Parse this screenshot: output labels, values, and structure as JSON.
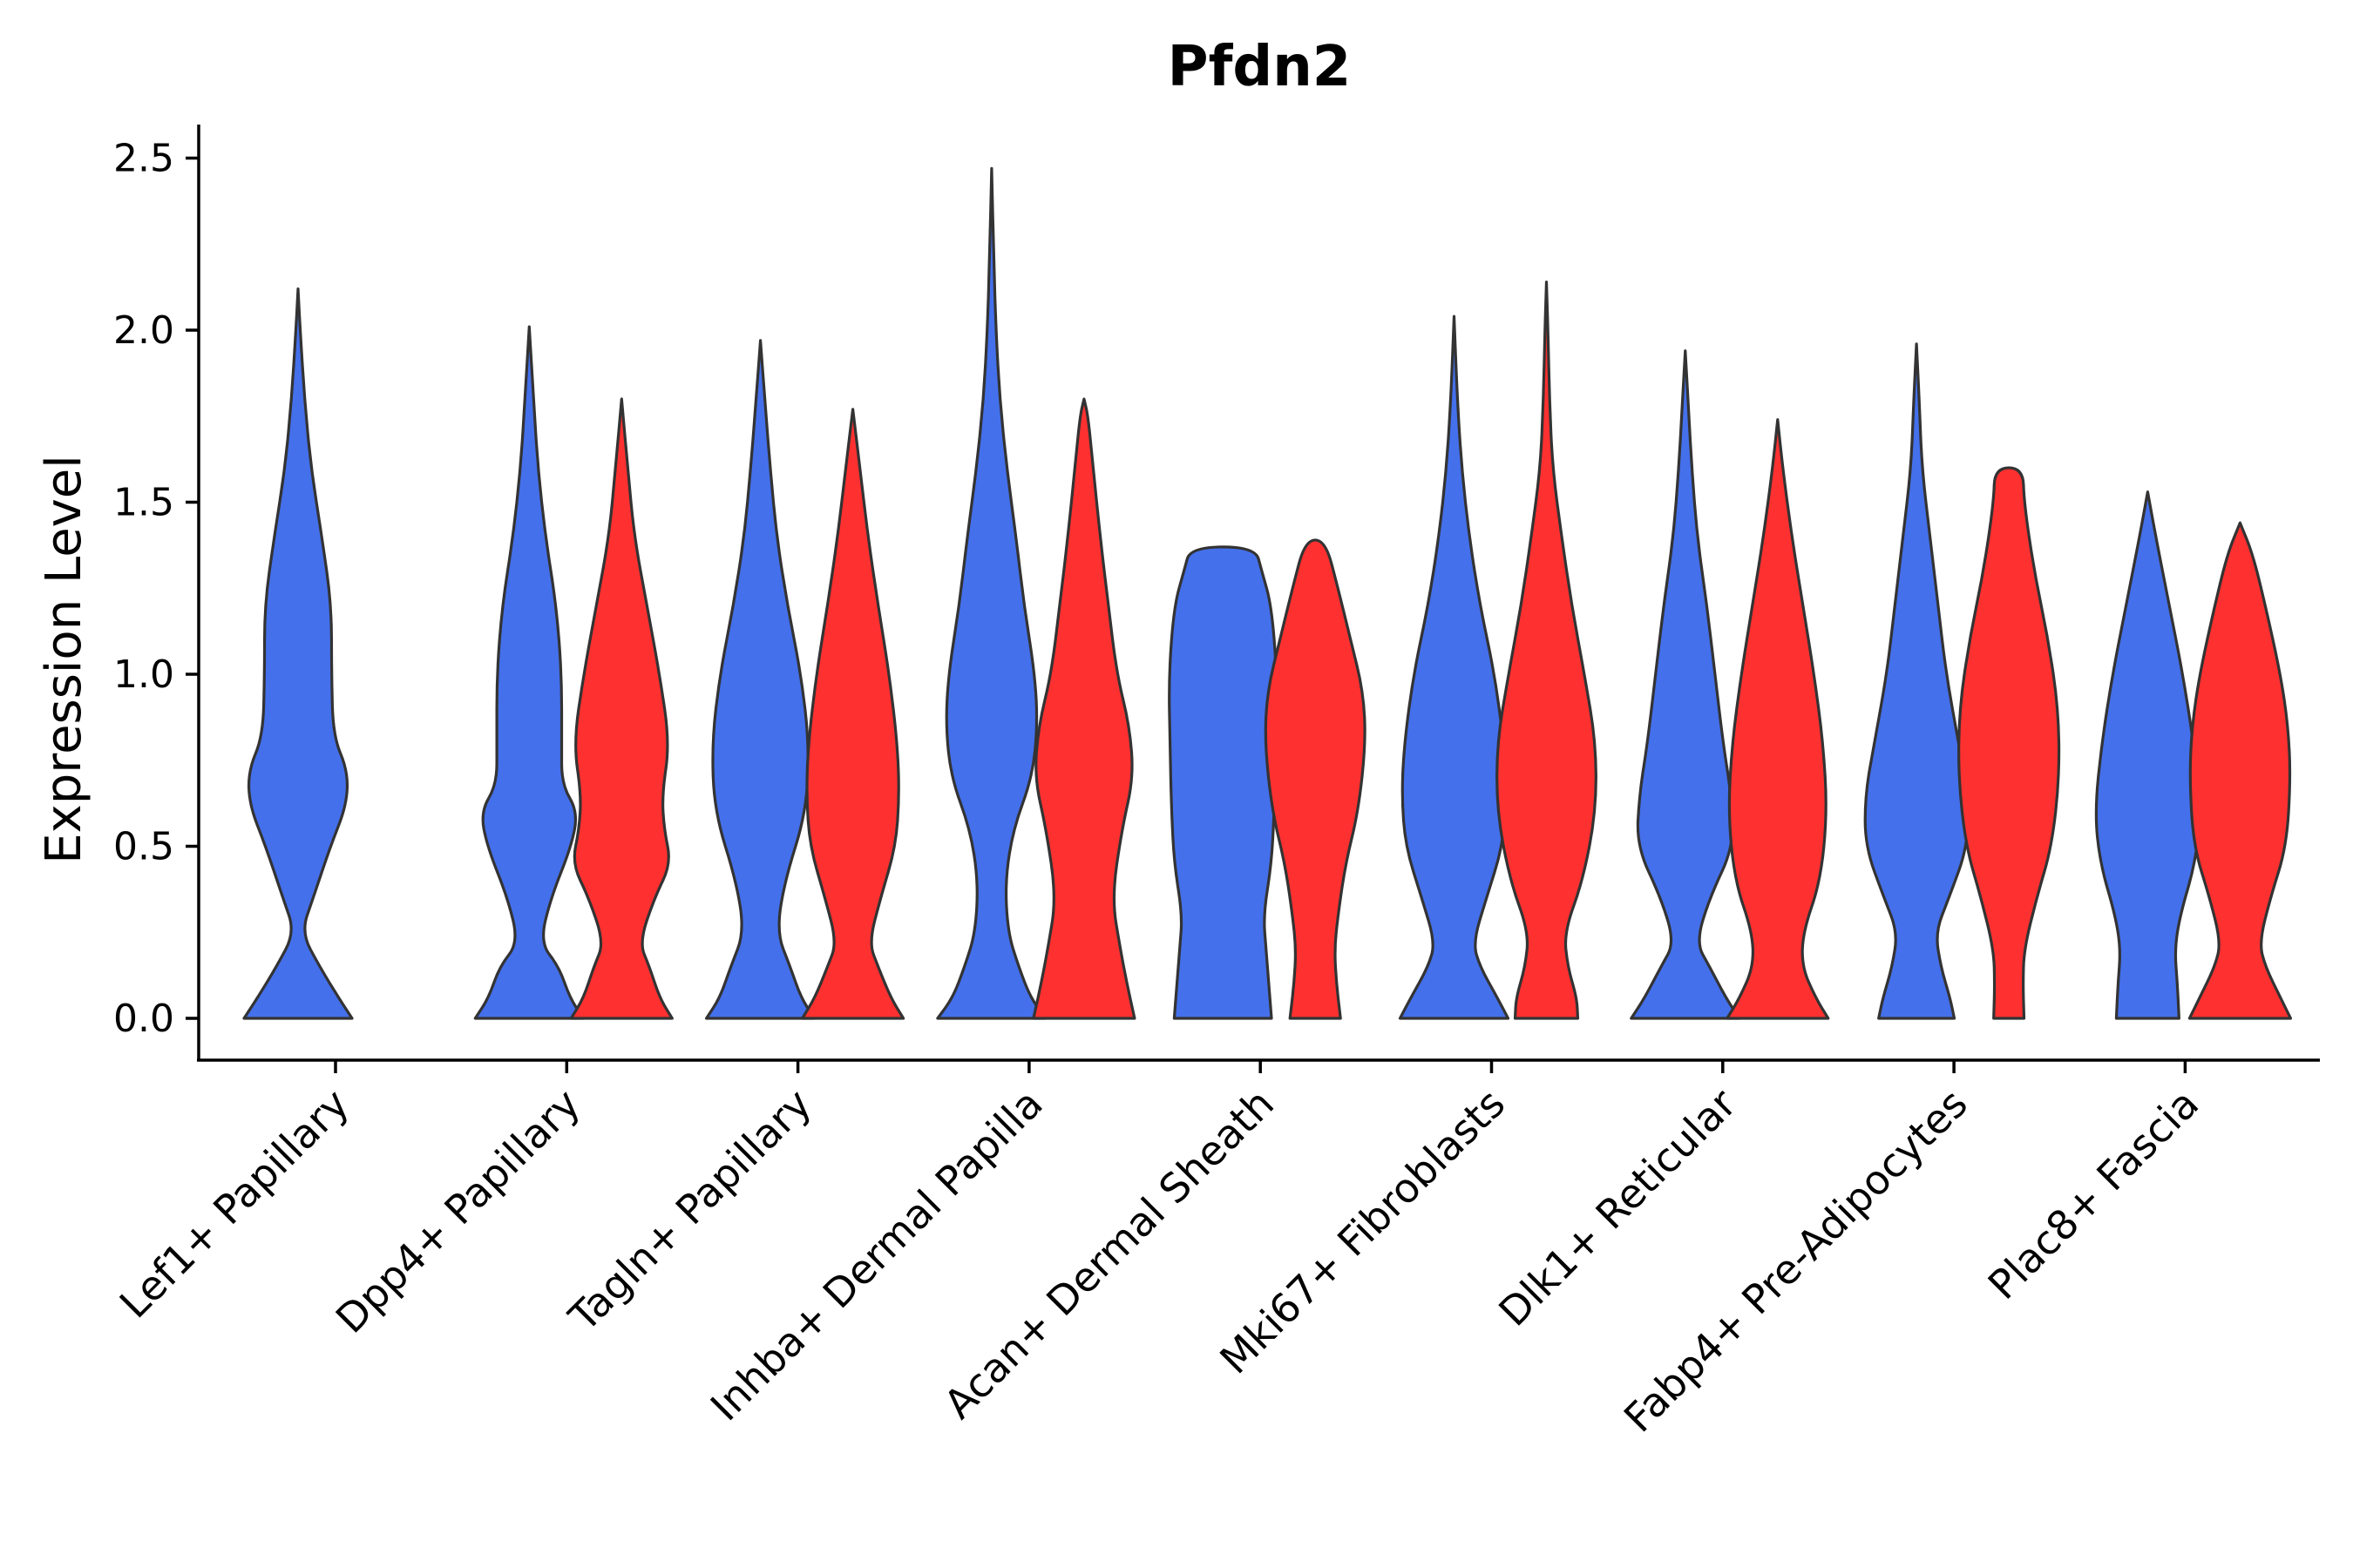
{
  "chart_data": {
    "type": "violin",
    "title": "Pfdn2",
    "xlabel": "",
    "ylabel": "Expression Level",
    "ylim": [
      -0.12,
      2.6
    ],
    "yticks": [
      0.0,
      0.5,
      1.0,
      1.5,
      2.0,
      2.5
    ],
    "ytick_labels": [
      "0.0",
      "0.5",
      "1.0",
      "1.5",
      "2.0",
      "2.5"
    ],
    "grid": false,
    "legend": "none",
    "colors": {
      "group_a": "#4470EB",
      "group_b": "#FF3030",
      "outline": "#333333"
    },
    "categories": [
      "Lef1+ Papillary",
      "Dpp4+ Papillary",
      "Tagln+ Papillary",
      "Inhba+ Dermal Papilla",
      "Acan+ Dermal Sheath",
      "Mki67+ Fibroblasts",
      "Dlk1+ Reticular",
      "Fabp4+ Pre-Adipocytes",
      "Plac8+ Fascia"
    ],
    "violins": [
      {
        "category": 0,
        "group": "a",
        "max": 2.12,
        "flat": false,
        "profile": [
          [
            0,
            1.0
          ],
          [
            0.06,
            0.75
          ],
          [
            0.15,
            0.4
          ],
          [
            0.25,
            0.06
          ],
          [
            0.35,
            0.28
          ],
          [
            0.5,
            0.6
          ],
          [
            0.62,
            0.9
          ],
          [
            0.72,
            0.92
          ],
          [
            0.82,
            0.65
          ],
          [
            1.0,
            0.62
          ],
          [
            1.2,
            0.62
          ],
          [
            1.4,
            0.44
          ],
          [
            1.6,
            0.24
          ],
          [
            1.8,
            0.12
          ],
          [
            2.0,
            0.04
          ],
          [
            2.12,
            0.0
          ]
        ]
      },
      {
        "category": 1,
        "group": "a",
        "max": 2.01,
        "flat": false,
        "profile": [
          [
            0,
            1.0
          ],
          [
            0.06,
            0.75
          ],
          [
            0.15,
            0.55
          ],
          [
            0.22,
            0.2
          ],
          [
            0.35,
            0.4
          ],
          [
            0.5,
            0.78
          ],
          [
            0.6,
            0.9
          ],
          [
            0.68,
            0.6
          ],
          [
            0.8,
            0.6
          ],
          [
            1.0,
            0.6
          ],
          [
            1.2,
            0.5
          ],
          [
            1.4,
            0.3
          ],
          [
            1.6,
            0.16
          ],
          [
            1.8,
            0.08
          ],
          [
            2.01,
            0.0
          ]
        ]
      },
      {
        "category": 1,
        "group": "b",
        "max": 1.8,
        "flat": false,
        "profile": [
          [
            0,
            1.0
          ],
          [
            0.06,
            0.75
          ],
          [
            0.15,
            0.55
          ],
          [
            0.22,
            0.35
          ],
          [
            0.35,
            0.65
          ],
          [
            0.45,
            0.98
          ],
          [
            0.55,
            0.84
          ],
          [
            0.65,
            0.8
          ],
          [
            0.8,
            0.95
          ],
          [
            1.0,
            0.75
          ],
          [
            1.2,
            0.5
          ],
          [
            1.4,
            0.25
          ],
          [
            1.6,
            0.12
          ],
          [
            1.8,
            0.0
          ]
        ]
      },
      {
        "category": 2,
        "group": "a",
        "max": 1.97,
        "flat": false,
        "profile": [
          [
            0,
            1.0
          ],
          [
            0.06,
            0.75
          ],
          [
            0.15,
            0.55
          ],
          [
            0.25,
            0.3
          ],
          [
            0.4,
            0.45
          ],
          [
            0.6,
            0.85
          ],
          [
            0.8,
            0.9
          ],
          [
            1.0,
            0.75
          ],
          [
            1.2,
            0.5
          ],
          [
            1.4,
            0.3
          ],
          [
            1.6,
            0.18
          ],
          [
            1.8,
            0.08
          ],
          [
            1.97,
            0.0
          ]
        ]
      },
      {
        "category": 2,
        "group": "b",
        "max": 1.77,
        "flat": false,
        "profile": [
          [
            0,
            1.0
          ],
          [
            0.06,
            0.75
          ],
          [
            0.15,
            0.5
          ],
          [
            0.22,
            0.32
          ],
          [
            0.35,
            0.55
          ],
          [
            0.5,
            0.85
          ],
          [
            0.65,
            0.92
          ],
          [
            0.8,
            0.88
          ],
          [
            1.0,
            0.72
          ],
          [
            1.2,
            0.5
          ],
          [
            1.4,
            0.3
          ],
          [
            1.6,
            0.14
          ],
          [
            1.77,
            0.0
          ]
        ]
      },
      {
        "category": 3,
        "group": "a",
        "max": 2.47,
        "flat": false,
        "profile": [
          [
            0,
            1.0
          ],
          [
            0.06,
            0.72
          ],
          [
            0.15,
            0.5
          ],
          [
            0.25,
            0.3
          ],
          [
            0.4,
            0.25
          ],
          [
            0.55,
            0.4
          ],
          [
            0.7,
            0.75
          ],
          [
            0.85,
            0.85
          ],
          [
            1.0,
            0.8
          ],
          [
            1.2,
            0.6
          ],
          [
            1.4,
            0.45
          ],
          [
            1.6,
            0.28
          ],
          [
            1.8,
            0.15
          ],
          [
            2.0,
            0.08
          ],
          [
            2.2,
            0.04
          ],
          [
            2.47,
            0.0
          ]
        ]
      },
      {
        "category": 3,
        "group": "b",
        "max": 1.8,
        "flat": false,
        "profile": [
          [
            0,
            1.0
          ],
          [
            0.1,
            0.85
          ],
          [
            0.2,
            0.72
          ],
          [
            0.35,
            0.55
          ],
          [
            0.55,
            0.75
          ],
          [
            0.7,
            0.98
          ],
          [
            0.85,
            0.9
          ],
          [
            1.0,
            0.65
          ],
          [
            1.2,
            0.48
          ],
          [
            1.4,
            0.32
          ],
          [
            1.6,
            0.18
          ],
          [
            1.75,
            0.08
          ],
          [
            1.8,
            0.0
          ]
        ]
      },
      {
        "category": 4,
        "group": "a",
        "max": 1.37,
        "flat": true,
        "profile": [
          [
            0,
            0.9
          ],
          [
            0.1,
            0.85
          ],
          [
            0.2,
            0.8
          ],
          [
            0.3,
            0.75
          ],
          [
            0.45,
            0.9
          ],
          [
            0.6,
            0.95
          ],
          [
            0.8,
            0.98
          ],
          [
            1.0,
            1.0
          ],
          [
            1.2,
            0.9
          ],
          [
            1.3,
            0.72
          ],
          [
            1.37,
            0.6
          ]
        ]
      },
      {
        "category": 4,
        "group": "b",
        "max": 1.39,
        "flat": true,
        "profile": [
          [
            0,
            0.5
          ],
          [
            0.1,
            0.42
          ],
          [
            0.2,
            0.38
          ],
          [
            0.3,
            0.45
          ],
          [
            0.45,
            0.6
          ],
          [
            0.6,
            0.85
          ],
          [
            0.8,
            1.0
          ],
          [
            0.95,
            0.95
          ],
          [
            1.1,
            0.7
          ],
          [
            1.25,
            0.45
          ],
          [
            1.39,
            0.2
          ]
        ]
      },
      {
        "category": 5,
        "group": "a",
        "max": 2.04,
        "flat": false,
        "profile": [
          [
            0,
            1.0
          ],
          [
            0.06,
            0.8
          ],
          [
            0.15,
            0.48
          ],
          [
            0.22,
            0.35
          ],
          [
            0.35,
            0.6
          ],
          [
            0.5,
            0.9
          ],
          [
            0.65,
            0.97
          ],
          [
            0.8,
            0.92
          ],
          [
            1.0,
            0.75
          ],
          [
            1.2,
            0.48
          ],
          [
            1.4,
            0.28
          ],
          [
            1.6,
            0.14
          ],
          [
            1.8,
            0.06
          ],
          [
            2.04,
            0.0
          ]
        ]
      },
      {
        "category": 5,
        "group": "b",
        "max": 2.14,
        "flat": false,
        "profile": [
          [
            0,
            0.62
          ],
          [
            0.06,
            0.6
          ],
          [
            0.15,
            0.42
          ],
          [
            0.25,
            0.35
          ],
          [
            0.4,
            0.72
          ],
          [
            0.6,
            0.98
          ],
          [
            0.8,
            0.98
          ],
          [
            1.0,
            0.75
          ],
          [
            1.2,
            0.5
          ],
          [
            1.4,
            0.3
          ],
          [
            1.6,
            0.12
          ],
          [
            1.8,
            0.06
          ],
          [
            2.0,
            0.03
          ],
          [
            2.14,
            0.0
          ]
        ]
      },
      {
        "category": 6,
        "group": "a",
        "max": 1.94,
        "flat": false,
        "profile": [
          [
            0,
            1.0
          ],
          [
            0.06,
            0.75
          ],
          [
            0.15,
            0.45
          ],
          [
            0.22,
            0.2
          ],
          [
            0.35,
            0.45
          ],
          [
            0.5,
            0.9
          ],
          [
            0.65,
            0.85
          ],
          [
            0.8,
            0.7
          ],
          [
            1.0,
            0.55
          ],
          [
            1.2,
            0.4
          ],
          [
            1.4,
            0.22
          ],
          [
            1.6,
            0.12
          ],
          [
            1.8,
            0.05
          ],
          [
            1.94,
            0.0
          ]
        ]
      },
      {
        "category": 6,
        "group": "b",
        "max": 1.74,
        "flat": false,
        "profile": [
          [
            0,
            1.0
          ],
          [
            0.06,
            0.75
          ],
          [
            0.15,
            0.48
          ],
          [
            0.25,
            0.5
          ],
          [
            0.4,
            0.85
          ],
          [
            0.6,
            0.98
          ],
          [
            0.8,
            0.9
          ],
          [
            1.0,
            0.72
          ],
          [
            1.2,
            0.5
          ],
          [
            1.4,
            0.28
          ],
          [
            1.6,
            0.1
          ],
          [
            1.74,
            0.0
          ]
        ]
      },
      {
        "category": 7,
        "group": "a",
        "max": 1.96,
        "flat": false,
        "profile": [
          [
            0,
            0.7
          ],
          [
            0.06,
            0.62
          ],
          [
            0.15,
            0.45
          ],
          [
            0.25,
            0.35
          ],
          [
            0.35,
            0.6
          ],
          [
            0.5,
            0.95
          ],
          [
            0.65,
            0.95
          ],
          [
            0.8,
            0.78
          ],
          [
            1.0,
            0.55
          ],
          [
            1.2,
            0.4
          ],
          [
            1.4,
            0.25
          ],
          [
            1.6,
            0.1
          ],
          [
            1.8,
            0.05
          ],
          [
            1.96,
            0.0
          ]
        ]
      },
      {
        "category": 7,
        "group": "b",
        "max": 1.6,
        "flat": true,
        "profile": [
          [
            0,
            0.3
          ],
          [
            0.1,
            0.28
          ],
          [
            0.2,
            0.3
          ],
          [
            0.35,
            0.55
          ],
          [
            0.5,
            0.85
          ],
          [
            0.7,
            1.0
          ],
          [
            0.9,
            0.98
          ],
          [
            1.1,
            0.78
          ],
          [
            1.3,
            0.5
          ],
          [
            1.5,
            0.3
          ],
          [
            1.6,
            0.28
          ]
        ]
      },
      {
        "category": 8,
        "group": "a",
        "max": 1.53,
        "flat": false,
        "profile": [
          [
            0,
            0.58
          ],
          [
            0.1,
            0.55
          ],
          [
            0.2,
            0.5
          ],
          [
            0.3,
            0.6
          ],
          [
            0.45,
            0.88
          ],
          [
            0.6,
            0.98
          ],
          [
            0.8,
            0.85
          ],
          [
            1.0,
            0.65
          ],
          [
            1.2,
            0.4
          ],
          [
            1.4,
            0.15
          ],
          [
            1.53,
            0.0
          ]
        ]
      },
      {
        "category": 8,
        "group": "b",
        "max": 1.44,
        "flat": false,
        "profile": [
          [
            0,
            1.0
          ],
          [
            0.06,
            0.8
          ],
          [
            0.15,
            0.5
          ],
          [
            0.22,
            0.38
          ],
          [
            0.35,
            0.6
          ],
          [
            0.5,
            0.92
          ],
          [
            0.7,
            1.0
          ],
          [
            0.85,
            0.95
          ],
          [
            1.0,
            0.8
          ],
          [
            1.2,
            0.5
          ],
          [
            1.35,
            0.25
          ],
          [
            1.44,
            0.0
          ]
        ]
      }
    ]
  }
}
